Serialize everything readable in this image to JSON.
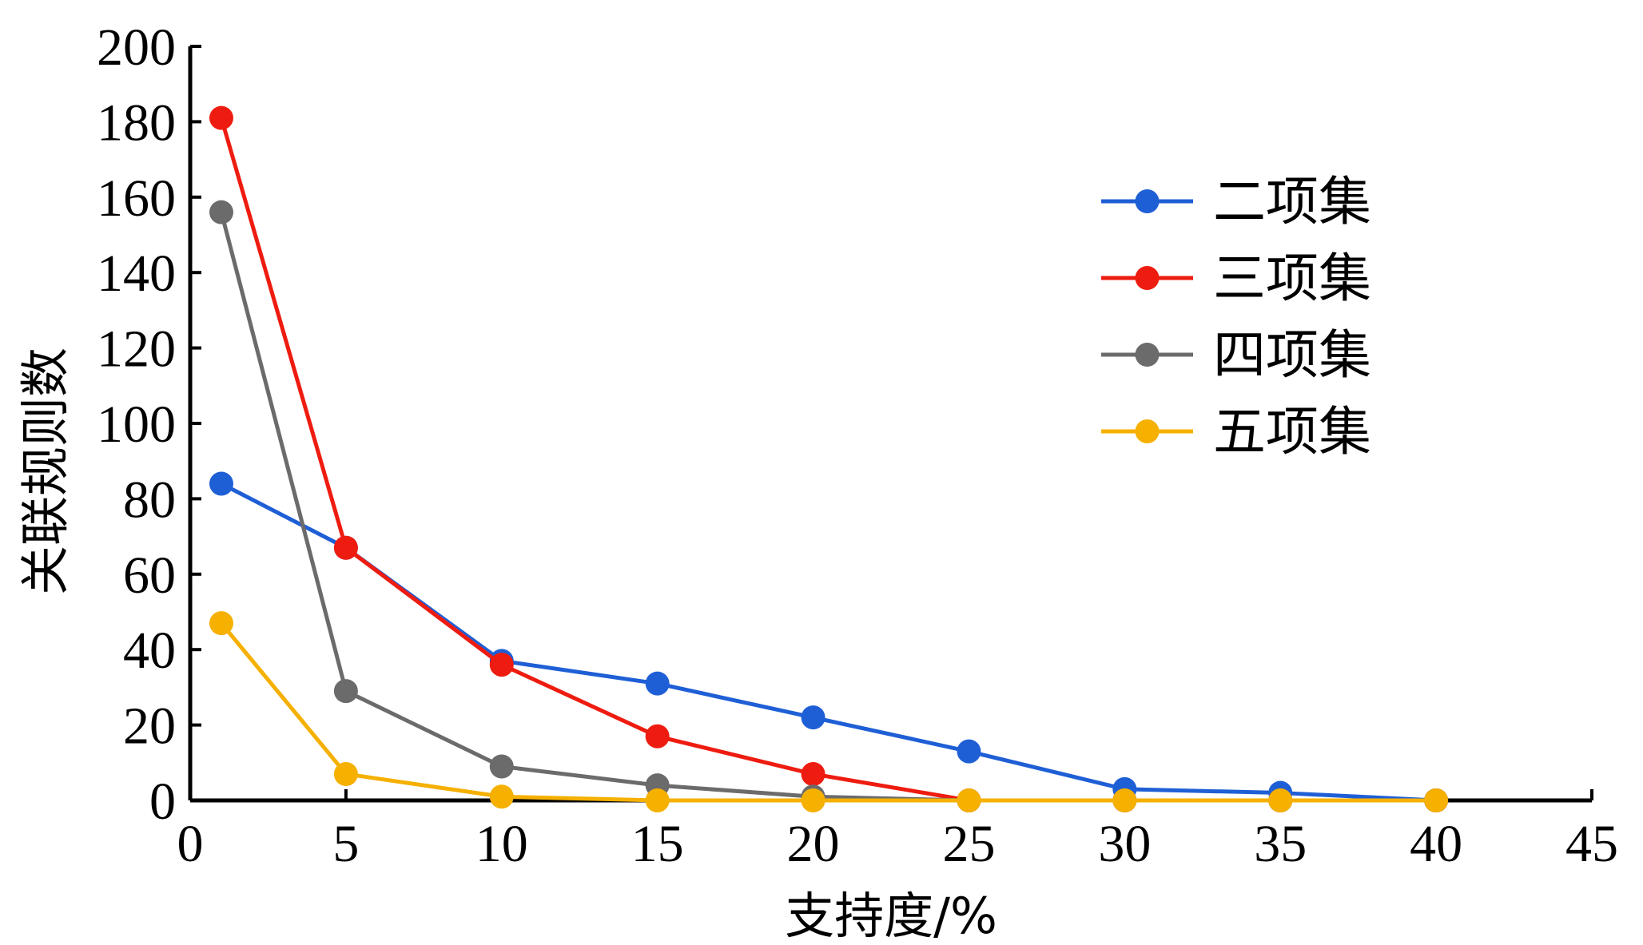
{
  "chart_data": {
    "type": "line",
    "title": "",
    "xlabel": "支持度/%",
    "ylabel": "关联规则数",
    "xlim": [
      0,
      45
    ],
    "ylim": [
      0,
      200
    ],
    "xticks": [
      0,
      5,
      10,
      15,
      20,
      25,
      30,
      35,
      40,
      45
    ],
    "yticks": [
      0,
      20,
      40,
      60,
      80,
      100,
      120,
      140,
      160,
      180,
      200
    ],
    "grid": false,
    "legend_position": "top-right",
    "x": [
      1,
      5,
      10,
      15,
      20,
      25,
      30,
      35,
      40
    ],
    "series": [
      {
        "name": "二项集",
        "color": "#1f5fd6",
        "values": [
          84,
          67,
          37,
          31,
          22,
          13,
          3,
          2,
          0
        ]
      },
      {
        "name": "三项集",
        "color": "#ee1c10",
        "values": [
          181,
          67,
          36,
          17,
          7,
          0,
          0,
          0,
          0
        ]
      },
      {
        "name": "四项集",
        "color": "#6b6b6b",
        "values": [
          156,
          29,
          9,
          4,
          1,
          0,
          0,
          0,
          0
        ]
      },
      {
        "name": "五项集",
        "color": "#f5b000",
        "values": [
          47,
          7,
          1,
          0,
          0,
          0,
          0,
          0,
          0
        ]
      }
    ]
  }
}
